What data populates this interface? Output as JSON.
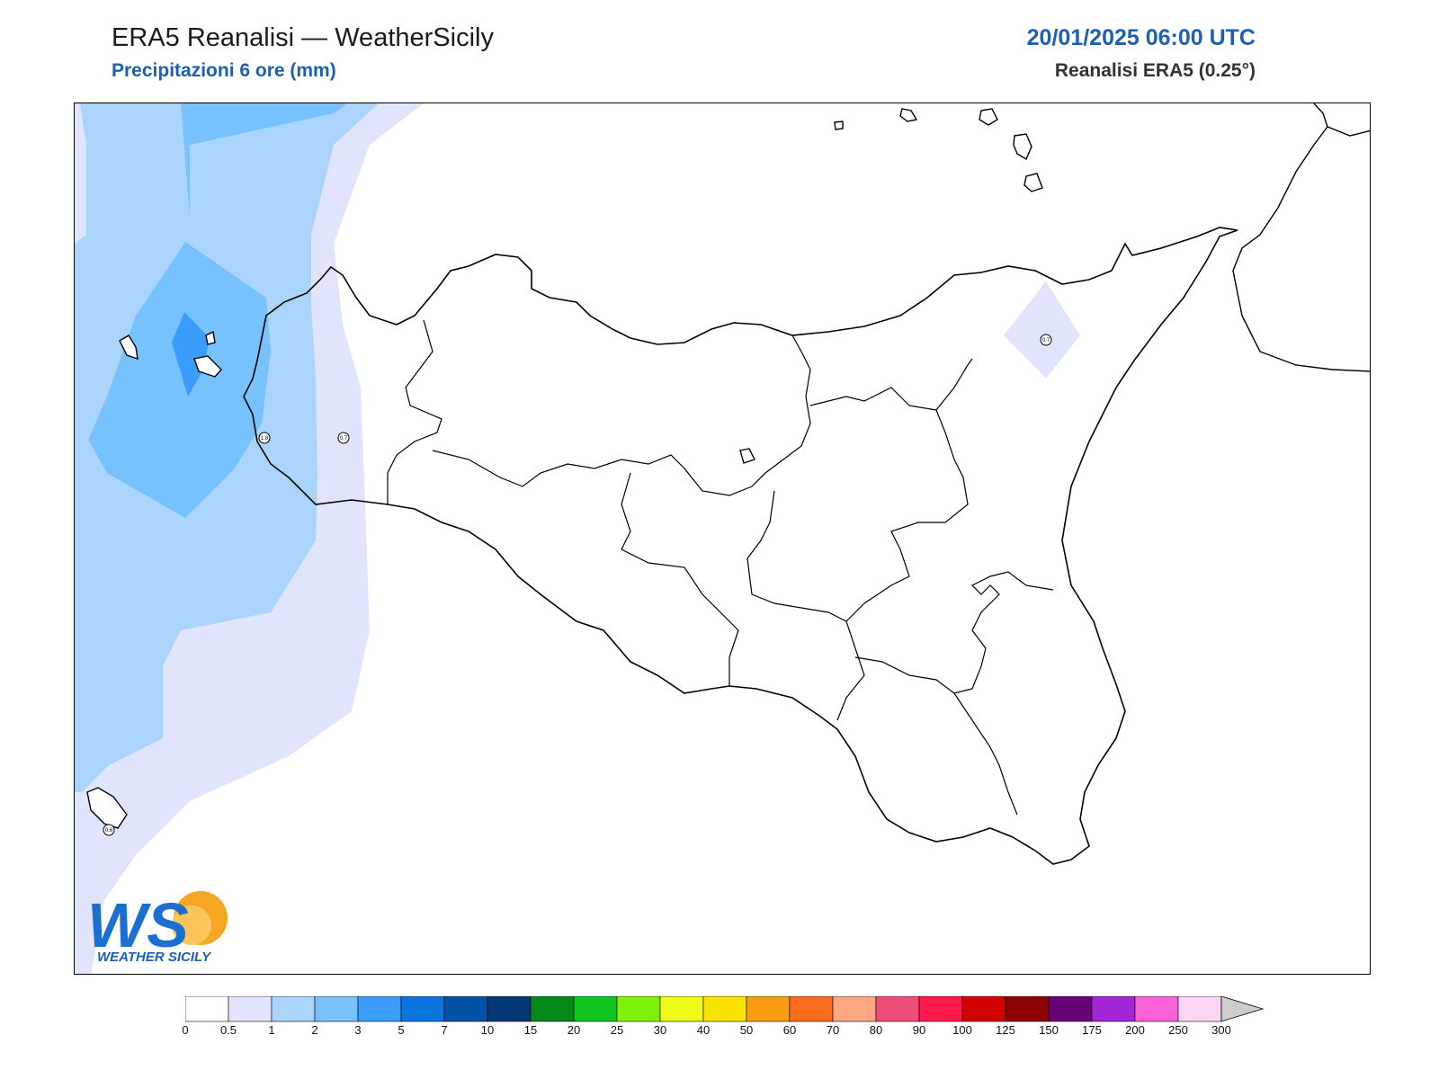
{
  "header": {
    "title": "ERA5 Reanalisi — WeatherSicily",
    "subtitle": "Precipitazioni 6 ore (mm)",
    "datetime": "20/01/2025 06:00 UTC",
    "source": "Reanalisi ERA5 (0.25°)"
  },
  "map": {
    "station_labels": [
      "1.8",
      "0.7",
      "0.7",
      "0.6"
    ]
  },
  "logo": {
    "letters": "WS",
    "text": "WEATHER SICILY"
  },
  "colorbar": {
    "ticks": [
      "0",
      "0.5",
      "1",
      "2",
      "3",
      "5",
      "7",
      "10",
      "15",
      "20",
      "25",
      "30",
      "40",
      "50",
      "60",
      "70",
      "80",
      "90",
      "100",
      "125",
      "150",
      "175",
      "200",
      "250",
      "300"
    ],
    "colors": [
      "#ffffff",
      "#e0e4fc",
      "#aad4fc",
      "#77c1fc",
      "#3a9cfb",
      "#0a75dc",
      "#0252a8",
      "#053876",
      "#058a1a",
      "#12c41e",
      "#7ff00a",
      "#eefa17",
      "#fae200",
      "#fb9d12",
      "#fb6c1e",
      "#fca783",
      "#ee4f7a",
      "#fb1a4a",
      "#d20202",
      "#8e0404",
      "#670376",
      "#a226d6",
      "#fc62d7",
      "#fcd4f4"
    ],
    "overflow_color": "#cccccc"
  }
}
